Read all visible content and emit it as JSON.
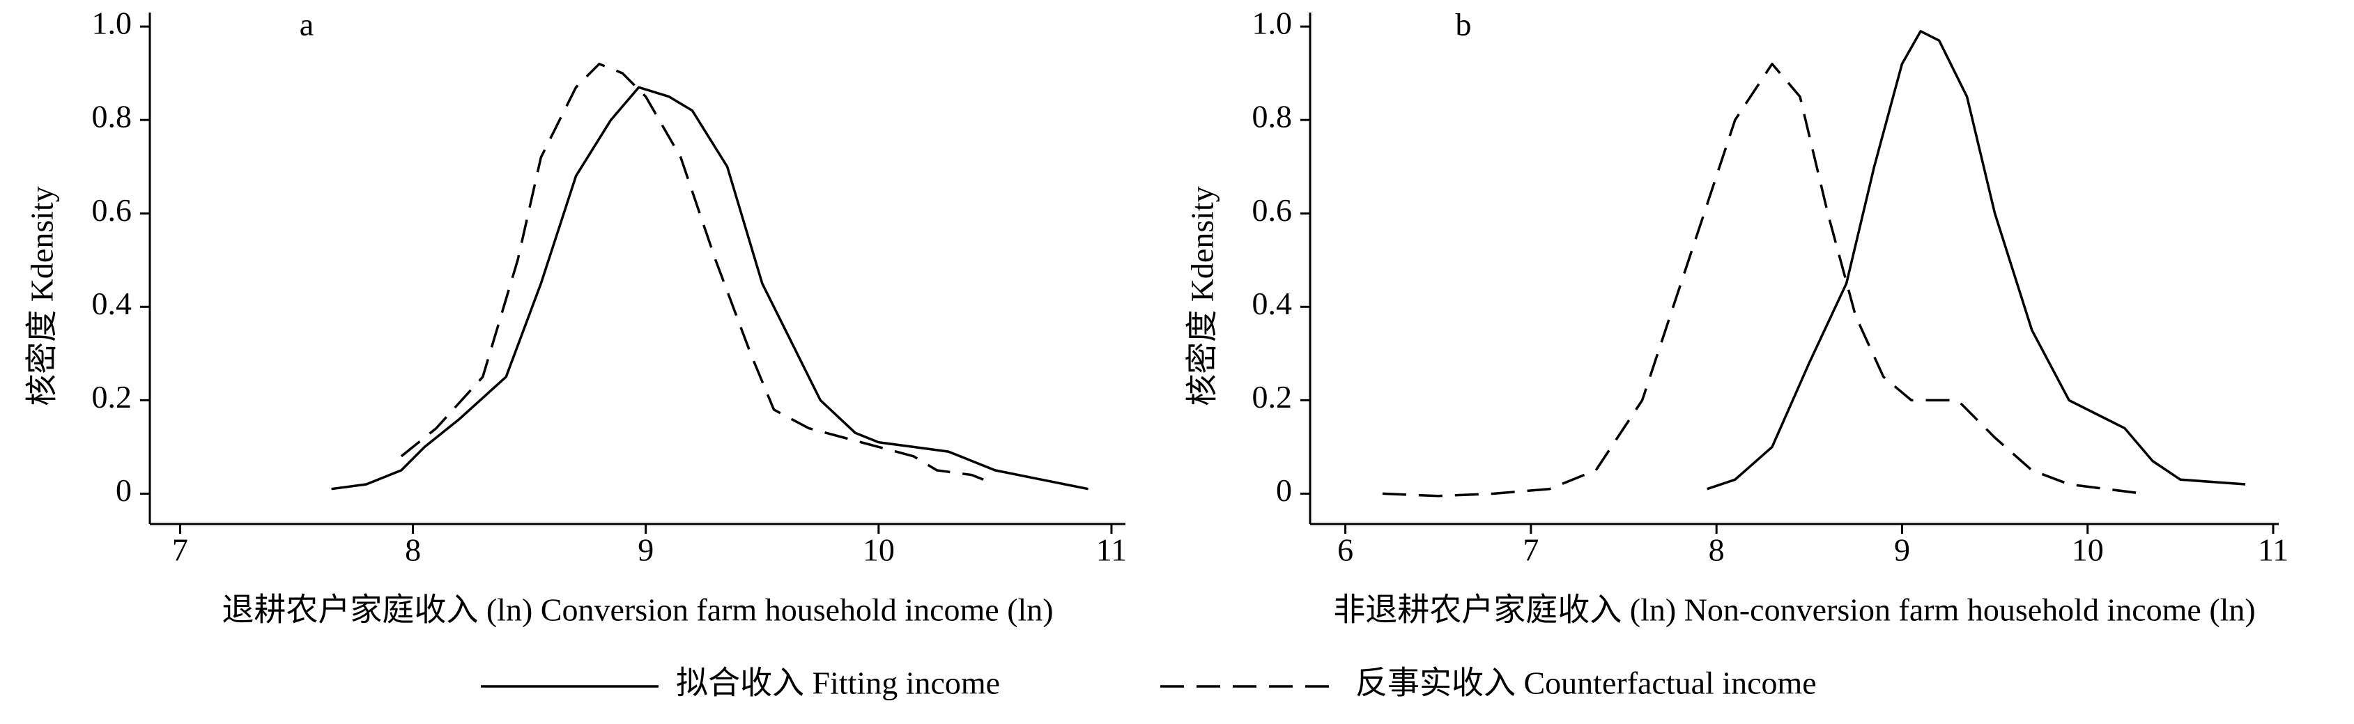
{
  "chart_data": [
    {
      "type": "line",
      "panel_label": "a",
      "x_label": "退耕农户家庭收入 (ln)  Conversion farm household income (ln)",
      "y_label": "核密度  Kdensity",
      "xlim": [
        6.87,
        11.06
      ],
      "ylim": [
        -0.065,
        1.03
      ],
      "xticks": [
        7,
        8,
        9,
        10,
        11
      ],
      "yticks": [
        0,
        0.2,
        0.4,
        0.6,
        0.8,
        {
          "value": 1,
          "label": "1.0"
        }
      ],
      "series": [
        {
          "name": "拟合收入  Fitting income",
          "color": "#000000",
          "dash": "solid",
          "x": [
            7.65,
            7.8,
            7.95,
            8.05,
            8.2,
            8.4,
            8.55,
            8.7,
            8.85,
            8.97,
            9.1,
            9.2,
            9.35,
            9.5,
            9.6,
            9.75,
            9.9,
            10.0,
            10.15,
            10.3,
            10.5,
            10.7,
            10.9
          ],
          "values": [
            0.01,
            0.02,
            0.05,
            0.1,
            0.16,
            0.25,
            0.45,
            0.68,
            0.8,
            0.87,
            0.85,
            0.82,
            0.7,
            0.45,
            0.35,
            0.2,
            0.13,
            0.11,
            0.1,
            0.09,
            0.05,
            0.03,
            0.01
          ]
        },
        {
          "name": "反事实收入  Counterfactual income",
          "color": "#000000",
          "dash": "dashed",
          "x": [
            7.95,
            8.1,
            8.3,
            8.45,
            8.55,
            8.7,
            8.8,
            8.9,
            9.0,
            9.15,
            9.3,
            9.45,
            9.55,
            9.7,
            9.85,
            10.0,
            10.15,
            10.25,
            10.4,
            10.45
          ],
          "values": [
            0.08,
            0.14,
            0.25,
            0.5,
            0.72,
            0.87,
            0.92,
            0.9,
            0.85,
            0.72,
            0.5,
            0.3,
            0.18,
            0.14,
            0.12,
            0.1,
            0.08,
            0.05,
            0.04,
            0.03
          ]
        }
      ]
    },
    {
      "type": "line",
      "panel_label": "b",
      "x_label": "非退耕农户家庭收入 (ln)  Non-conversion farm household income (ln)",
      "y_label": "核密度  Kdensity",
      "xlim": [
        5.81,
        11.03
      ],
      "ylim": [
        -0.065,
        1.03
      ],
      "xticks": [
        6,
        7,
        8,
        9,
        10,
        11
      ],
      "yticks": [
        0,
        0.2,
        0.4,
        0.6,
        0.8,
        {
          "value": 1,
          "label": "1.0"
        }
      ],
      "series": [
        {
          "color": "#000000",
          "dash": "solid",
          "x": [
            7.95,
            8.1,
            8.3,
            8.5,
            8.7,
            8.85,
            9.0,
            9.1,
            9.2,
            9.35,
            9.5,
            9.7,
            9.9,
            10.05,
            10.2,
            10.35,
            10.5,
            10.85
          ],
          "values": [
            0.01,
            0.03,
            0.1,
            0.28,
            0.45,
            0.7,
            0.92,
            0.99,
            0.97,
            0.85,
            0.6,
            0.35,
            0.2,
            0.17,
            0.14,
            0.07,
            0.03,
            0.02
          ]
        },
        {
          "color": "#000000",
          "dash": "dashed",
          "x": [
            6.2,
            6.5,
            6.8,
            7.1,
            7.35,
            7.6,
            7.85,
            8.1,
            8.3,
            8.45,
            8.6,
            8.75,
            8.9,
            9.05,
            9.3,
            9.5,
            9.7,
            9.9,
            10.1,
            10.3
          ],
          "values": [
            0,
            -0.005,
            0,
            0.01,
            0.05,
            0.2,
            0.5,
            0.8,
            0.92,
            0.85,
            0.6,
            0.38,
            0.25,
            0.2,
            0.2,
            0.12,
            0.05,
            0.02,
            0.01,
            0
          ]
        }
      ]
    }
  ]
}
